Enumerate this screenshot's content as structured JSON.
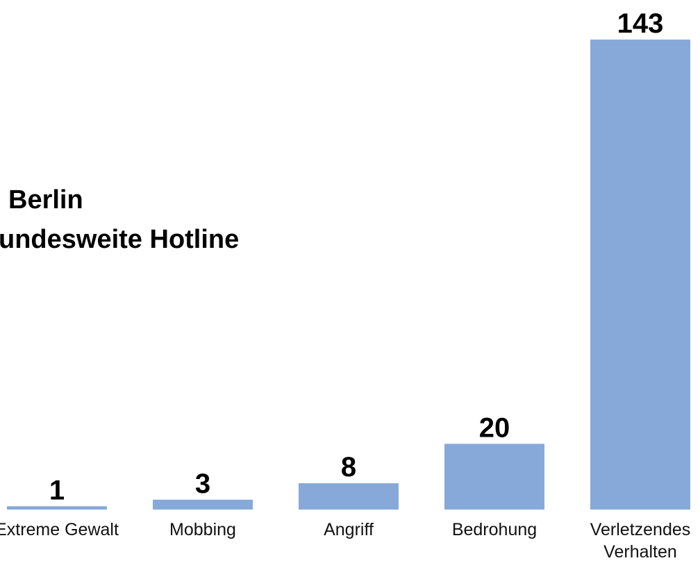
{
  "chart_data": {
    "type": "bar",
    "title": [
      "Berlin",
      "undesweite Hotline"
    ],
    "categories": [
      "Extreme Gewalt",
      "Mobbing",
      "Angriff",
      "Bedrohung",
      "Verletzendes Verhalten"
    ],
    "values": [
      1,
      3,
      8,
      20,
      143
    ],
    "color": "#87a9d9"
  }
}
